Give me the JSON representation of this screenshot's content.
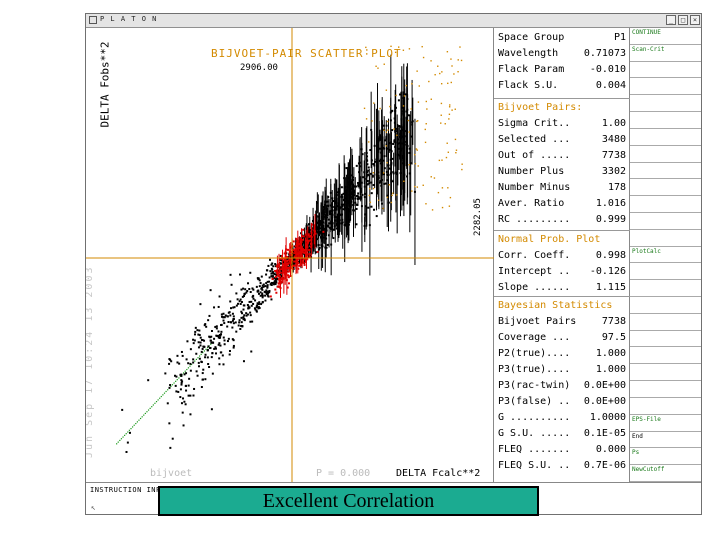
{
  "window": {
    "title": "P L A T O N"
  },
  "plot": {
    "title": "BIJVOET-PAIR SCATTER PLOT",
    "max_label": "2906.00",
    "x_max_label": "2282.05",
    "y_axis_label": "DELTA Fobs**2",
    "x_axis_label": "DELTA Fcalc**2",
    "faint_left_text": "Jun Sep 17 10:24 13 2003",
    "faint_bottom_left": "bijvoet",
    "faint_bottom_mid": "P = 0.000",
    "colors": {
      "axis": "#d38a00",
      "main_points": "#000000",
      "negative_points": "#e00000",
      "outlier_points": "#d38a00",
      "fit_line": "#1a9a1a"
    }
  },
  "chart_data": {
    "type": "scatter",
    "title": "BIJVOET-PAIR SCATTER PLOT",
    "xlabel": "DELTA Fcalc**2",
    "ylabel": "DELTA Fobs**2",
    "xlim": [
      -2282.05,
      2282.05
    ],
    "ylim": [
      -2906.0,
      2906.0
    ],
    "slope": 1.115,
    "intercept": -0.126,
    "correlation": 0.998,
    "series": [
      {
        "name": "Bijvoet Pairs",
        "color": "#000000"
      },
      {
        "color": "#e00000"
      },
      {
        "color": "#d38a00"
      }
    ]
  },
  "stats": {
    "header": [
      {
        "label": "Space Group",
        "value": "P1"
      },
      {
        "label": "Wavelength",
        "value": "0.71073"
      },
      {
        "label": "Flack Param",
        "value": "-0.010"
      },
      {
        "label": "Flack S.U.",
        "value": "0.004"
      }
    ],
    "bijvoet_title": "Bijvoet Pairs:",
    "bijvoet": [
      {
        "label": "Sigma Crit..",
        "value": "1.00"
      },
      {
        "label": "Selected ...",
        "value": "3480"
      },
      {
        "label": "Out of .....",
        "value": "7738"
      },
      {
        "label": "Number Plus",
        "value": "3302"
      },
      {
        "label": "Number Minus",
        "value": "178"
      },
      {
        "label": "Aver. Ratio",
        "value": "1.016"
      },
      {
        "label": "RC .........",
        "value": "0.999"
      }
    ],
    "normal_title": "Normal Prob. Plot",
    "normal": [
      {
        "label": "Corr. Coeff.",
        "value": "0.998"
      },
      {
        "label": "Intercept ..",
        "value": "-0.126"
      },
      {
        "label": "Slope ......",
        "value": "1.115"
      }
    ],
    "bayes_title": "Bayesian Statistics",
    "bayes": [
      {
        "label": "Bijvoet Pairs",
        "value": "7738"
      },
      {
        "label": "Coverage ...",
        "value": "97.5"
      },
      {
        "label": "P2(true)....",
        "value": "1.000"
      },
      {
        "label": "P3(true)....",
        "value": "1.000"
      },
      {
        "label": "P3(rac-twin)",
        "value": "0.0E+00"
      },
      {
        "label": "P3(false) ..",
        "value": "0.0E+00"
      },
      {
        "label": "G ..........",
        "value": "1.0000"
      },
      {
        "label": "G S.U. .....",
        "value": "0.1E-05"
      },
      {
        "label": "FLEQ .......",
        "value": "0.000"
      },
      {
        "label": "FLEQ S.U. ..",
        "value": "0.7E-06"
      }
    ]
  },
  "sidebar": {
    "items": [
      "CONTINUE",
      "Scan-Crit",
      "",
      "",
      "",
      "",
      "",
      "",
      "",
      "",
      "",
      "",
      "",
      "PlotCalc",
      "",
      "",
      "",
      "",
      "",
      "",
      "",
      "",
      "",
      "EPS-File",
      "End",
      "Ps",
      "NewCutoff"
    ]
  },
  "status": {
    "instruction": "INSTRUCTION INPUT via KEYBOARD or LEFT-MOUSE-CLICKS (HELP via RIGHT CLICKS)",
    "corner_icon": "↖"
  },
  "banner": {
    "text": "Excellent Correlation"
  }
}
